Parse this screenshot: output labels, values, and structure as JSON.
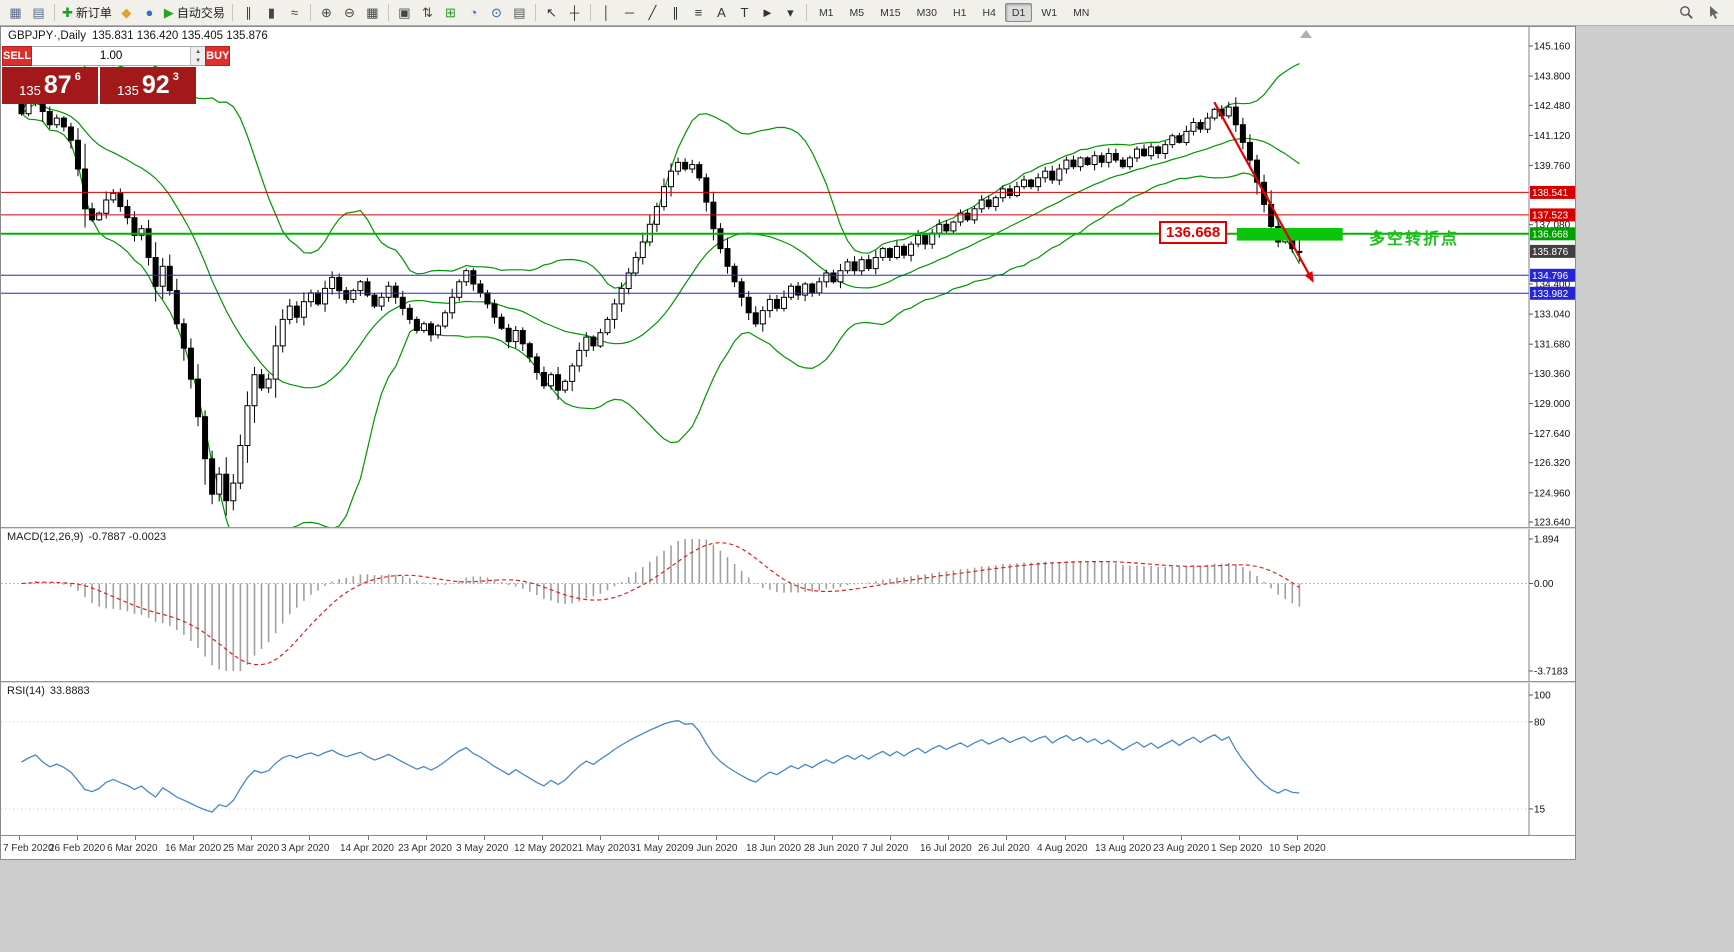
{
  "toolbar": {
    "groups": [
      {
        "items": [
          {
            "name": "charts-window-button",
            "glyph": "▦",
            "color": "#566a8a"
          },
          {
            "name": "profiles-button",
            "glyph": "▤",
            "color": "#566a8a"
          }
        ]
      },
      {
        "items": [
          {
            "name": "new-order-button",
            "glyph": "✚",
            "color": "#1f9e1f",
            "label": "新订单"
          },
          {
            "name": "metaeditor-button",
            "glyph": "◆",
            "color": "#e0a32e"
          },
          {
            "name": "strategy-tester-button",
            "glyph": "●",
            "color": "#3b6fc4"
          },
          {
            "name": "autotrading-button",
            "glyph": "▶",
            "color": "#28a428",
            "label": "自动交易"
          }
        ]
      },
      {
        "items": [
          {
            "name": "bar-chart-button",
            "glyph": "∥",
            "color": "#444"
          },
          {
            "name": "candlestick-chart-button",
            "glyph": "▮",
            "color": "#444"
          },
          {
            "name": "line-chart-button",
            "glyph": "≈",
            "color": "#444"
          }
        ]
      },
      {
        "items": [
          {
            "name": "zoom-in-button",
            "glyph": "⊕",
            "color": "#444"
          },
          {
            "name": "zoom-out-button",
            "glyph": "⊖",
            "color": "#444"
          },
          {
            "name": "tile-windows-button",
            "glyph": "▦",
            "color": "#444"
          }
        ]
      },
      {
        "items": [
          {
            "name": "arrange-windows-button",
            "glyph": "▣",
            "color": "#444"
          },
          {
            "name": "cascade-windows-button",
            "glyph": "⇅",
            "color": "#444"
          },
          {
            "name": "new-chart-button",
            "glyph": "⊞",
            "color": "#1f9e1f"
          },
          {
            "name": "period-clock-button",
            "glyph": "◔",
            "color": "#2a62b8"
          },
          {
            "name": "templates-button",
            "glyph": "⊙",
            "color": "#2a62b8"
          },
          {
            "name": "indicator-list-button",
            "glyph": "▤",
            "color": "#555"
          }
        ]
      },
      {
        "items": [
          {
            "name": "cursor-tool-button",
            "glyph": "↖",
            "color": "#333"
          },
          {
            "name": "crosshair-tool-button",
            "glyph": "┼",
            "color": "#333"
          }
        ]
      },
      {
        "items": [
          {
            "name": "vertical-line-tool-button",
            "glyph": "│",
            "color": "#333"
          },
          {
            "name": "horizontal-line-tool-button",
            "glyph": "─",
            "color": "#333"
          },
          {
            "name": "trendline-tool-button",
            "glyph": "╱",
            "color": "#333"
          },
          {
            "name": "channel-tool-button",
            "glyph": "∥",
            "color": "#333"
          },
          {
            "name": "fibonacci-tool-button",
            "glyph": "≡",
            "color": "#333"
          },
          {
            "name": "text-tool-button",
            "glyph": "A",
            "color": "#333"
          },
          {
            "name": "label-tool-button",
            "glyph": "T",
            "color": "#333"
          },
          {
            "name": "arrows-tool-button",
            "glyph": "►",
            "color": "#333"
          },
          {
            "name": "tools-dropdown-button",
            "glyph": "▾",
            "color": "#333"
          }
        ]
      }
    ],
    "timeframes": {
      "items": [
        "M1",
        "M5",
        "M15",
        "M30",
        "H1",
        "H4",
        "D1",
        "W1",
        "MN"
      ],
      "active": "D1"
    }
  },
  "trade_panel": {
    "sell_label": "SELL",
    "buy_label": "BUY",
    "volume": "1.00",
    "spin_up": "▲",
    "spin_down": "▼",
    "sell_base": "135",
    "sell_big": "87",
    "sell_sup": "6",
    "buy_base": "135",
    "buy_big": "92",
    "buy_sup": "3"
  },
  "chart": {
    "title_symbol": "GBPJPY·,Daily",
    "ohlc": "135.831 136.420 135.405 135.876"
  },
  "chart_data": {
    "type": "candlestick",
    "symbol": "GBPJPY",
    "period": "Daily",
    "ohlc_display": {
      "open": "135.831",
      "high": "136.420",
      "low": "135.405",
      "close": "135.876"
    },
    "last_candle": {
      "open": 135.831,
      "high": 136.42,
      "low": 135.405,
      "close": 135.876
    },
    "closes": [
      142.1,
      142.6,
      143.0,
      142.2,
      141.6,
      141.9,
      141.5,
      140.9,
      139.6,
      137.8,
      137.3,
      137.6,
      138.2,
      138.5,
      137.9,
      137.4,
      136.6,
      136.9,
      135.6,
      134.3,
      135.2,
      134.1,
      132.6,
      131.5,
      130.1,
      128.4,
      126.5,
      124.9,
      125.8,
      124.6,
      125.4,
      127.1,
      128.9,
      130.3,
      129.7,
      130.1,
      131.6,
      132.8,
      133.4,
      132.9,
      133.6,
      134.0,
      133.5,
      134.2,
      134.7,
      134.1,
      133.7,
      134.1,
      134.5,
      133.9,
      133.4,
      133.8,
      134.3,
      133.8,
      133.3,
      132.8,
      132.3,
      132.6,
      132.1,
      132.5,
      133.1,
      133.8,
      134.5,
      135.0,
      134.4,
      134.0,
      133.5,
      132.9,
      132.4,
      131.8,
      132.3,
      131.7,
      131.1,
      130.4,
      129.8,
      130.3,
      129.6,
      130.0,
      130.7,
      131.4,
      132.0,
      131.6,
      132.2,
      132.8,
      133.5,
      134.2,
      134.9,
      135.6,
      136.3,
      137.1,
      137.9,
      138.8,
      139.5,
      139.9,
      139.6,
      139.8,
      139.2,
      138.1,
      136.9,
      136.0,
      135.2,
      134.5,
      133.8,
      133.1,
      132.6,
      133.2,
      133.7,
      133.3,
      133.8,
      134.3,
      133.9,
      134.4,
      134.0,
      134.5,
      134.9,
      134.5,
      135.0,
      135.4,
      135.0,
      135.5,
      135.1,
      135.6,
      136.0,
      135.6,
      136.1,
      135.7,
      136.2,
      136.6,
      136.2,
      136.7,
      137.1,
      136.8,
      137.2,
      137.6,
      137.3,
      137.8,
      138.2,
      137.9,
      138.3,
      138.7,
      138.4,
      138.8,
      139.1,
      138.8,
      139.2,
      139.5,
      139.1,
      139.6,
      140.0,
      139.7,
      140.1,
      139.8,
      140.2,
      139.9,
      140.3,
      140.0,
      139.7,
      140.1,
      140.5,
      140.2,
      140.6,
      140.3,
      140.7,
      141.1,
      140.8,
      141.3,
      141.7,
      141.4,
      141.9,
      142.3,
      142.0,
      142.4,
      141.6,
      140.8,
      140.0,
      139.0,
      138.0,
      137.0,
      136.3,
      136.6,
      136.0,
      135.876
    ],
    "y_axis_ticks": [
      "145.160",
      "143.800",
      "142.480",
      "141.120",
      "139.760",
      "137.080",
      "134.400",
      "133.040",
      "131.680",
      "130.360",
      "129.000",
      "127.640",
      "126.320",
      "124.960",
      "123.640"
    ],
    "x_axis_dates": [
      "7 Feb 2020",
      "26 Feb 2020",
      "6 Mar 2020",
      "16 Mar 2020",
      "25 Mar 2020",
      "3 Apr 2020",
      "14 Apr 2020",
      "23 Apr 2020",
      "3 May 2020",
      "12 May 2020",
      "21 May 2020",
      "31 May 2020",
      "9 Jun 2020",
      "18 Jun 2020",
      "28 Jun 2020",
      "7 Jul 2020",
      "16 Jul 2020",
      "26 Jul 2020",
      "4 Aug 2020",
      "13 Aug 2020",
      "23 Aug 2020",
      "1 Sep 2020",
      "10 Sep 2020"
    ],
    "levels": [
      {
        "price": 138.541,
        "color": "#d40000",
        "width": 1
      },
      {
        "price": 137.523,
        "color": "#d40000",
        "width": 1
      },
      {
        "price": 136.668,
        "color": "#00b400",
        "width": 2
      },
      {
        "price": 134.796,
        "color": "#2525d4",
        "width": 1
      },
      {
        "price": 133.982,
        "color": "#2525d4",
        "width": 1
      }
    ],
    "price_badges": [
      {
        "text": "138.541",
        "color": "#d40000"
      },
      {
        "text": "137.523",
        "color": "#d40000"
      },
      {
        "text": "136.668",
        "color": "#00a000"
      },
      {
        "text": "135.876",
        "color": "#404040"
      },
      {
        "text": "134.796",
        "color": "#2525d4"
      },
      {
        "text": "133.982",
        "color": "#2525d4"
      }
    ],
    "zone": {
      "from_bar": 172.5,
      "to_bar": 187.5,
      "top_price": 136.93,
      "bottom_price": 136.36,
      "color": "#09c609"
    },
    "arrow": {
      "from_bar": 169.3,
      "from_price": 142.62,
      "to_bar": 183.4,
      "to_price": 134.45,
      "color": "#e00000"
    },
    "annotations": {
      "level_label": "136.668",
      "label_bar": 161.5,
      "label_price": 136.65,
      "zone_text": "多空转折点",
      "zone_text_bar": 191.2,
      "zone_text_price": 136.64
    },
    "indicators": {
      "bollinger": {
        "period": 20,
        "deviation": 2,
        "color": "#009600"
      },
      "macd": {
        "label": "MACD(12,26,9)",
        "values": "-0.7887 -0.0023",
        "scale": [
          "1.894",
          "0.00",
          "-3.7183"
        ],
        "scale_values": [
          1.894,
          0,
          -3.7183
        ]
      },
      "rsi": {
        "label": "RSI(14)",
        "value": "33.8883",
        "scale": [
          "100",
          "80",
          "15"
        ],
        "scale_values": [
          100,
          80,
          15
        ]
      }
    }
  }
}
